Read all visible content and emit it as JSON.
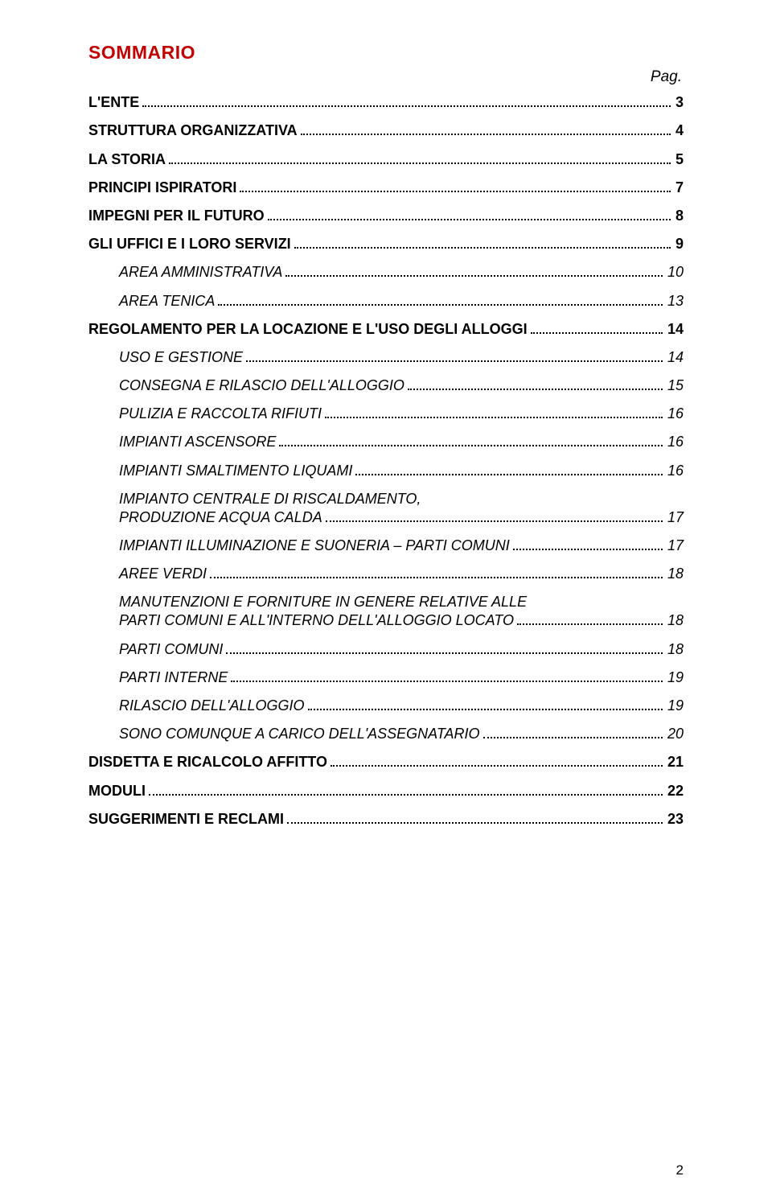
{
  "title": "SOMMARIO",
  "pag_label": "Pag.",
  "toc": [
    {
      "label": "L'ENTE",
      "page": "3",
      "bold": true,
      "italic": false,
      "indent": 0
    },
    {
      "label": "STRUTTURA ORGANIZZATIVA",
      "page": "4",
      "bold": true,
      "italic": false,
      "indent": 0
    },
    {
      "label": "LA STORIA",
      "page": "5",
      "bold": true,
      "italic": false,
      "indent": 0
    },
    {
      "label": "PRINCIPI ISPIRATORI",
      "page": "7",
      "bold": true,
      "italic": false,
      "indent": 0
    },
    {
      "label": "IMPEGNI PER IL FUTURO",
      "page": "8",
      "bold": true,
      "italic": false,
      "indent": 0
    },
    {
      "label": "GLI UFFICI E I LORO SERVIZI",
      "page": "9",
      "bold": true,
      "italic": false,
      "indent": 0
    },
    {
      "label": "AREA AMMINISTRATIVA",
      "page": "10",
      "bold": false,
      "italic": true,
      "indent": 1
    },
    {
      "label": "AREA TENICA",
      "page": "13",
      "bold": false,
      "italic": true,
      "indent": 1
    },
    {
      "label": "REGOLAMENTO PER LA LOCAZIONE E L'USO DEGLI ALLOGGI",
      "page": "14",
      "bold": true,
      "italic": false,
      "indent": 0
    },
    {
      "label": "USO E GESTIONE",
      "page": "14",
      "bold": false,
      "italic": true,
      "indent": 1
    },
    {
      "label": "CONSEGNA E RILASCIO DELL'ALLOGGIO",
      "page": "15",
      "bold": false,
      "italic": true,
      "indent": 1
    },
    {
      "label": "PULIZIA E RACCOLTA RIFIUTI",
      "page": "16",
      "bold": false,
      "italic": true,
      "indent": 1
    },
    {
      "label": "IMPIANTI ASCENSORE",
      "page": "16",
      "bold": false,
      "italic": true,
      "indent": 1
    },
    {
      "label": "IMPIANTI SMALTIMENTO LIQUAMI",
      "page": "16",
      "bold": false,
      "italic": true,
      "indent": 1
    },
    {
      "label_line1": "IMPIANTO CENTRALE DI RISCALDAMENTO,",
      "label": "PRODUZIONE ACQUA CALDA",
      "page": "17",
      "bold": false,
      "italic": true,
      "indent": 1,
      "multiline": true
    },
    {
      "label": "IMPIANTI ILLUMINAZIONE E SUONERIA – PARTI COMUNI",
      "page": "17",
      "bold": false,
      "italic": true,
      "indent": 1
    },
    {
      "label": "AREE VERDI",
      "page": "18",
      "bold": false,
      "italic": true,
      "indent": 1
    },
    {
      "label_line1": "MANUTENZIONI E FORNITURE IN GENERE RELATIVE ALLE",
      "label": "PARTI COMUNI E ALL'INTERNO DELL'ALLOGGIO LOCATO",
      "page": "18",
      "bold": false,
      "italic": true,
      "indent": 1,
      "multiline": true
    },
    {
      "label": "PARTI COMUNI",
      "page": "18",
      "bold": false,
      "italic": true,
      "indent": 1
    },
    {
      "label": "PARTI INTERNE",
      "page": "19",
      "bold": false,
      "italic": true,
      "indent": 1
    },
    {
      "label": "RILASCIO DELL'ALLOGGIO",
      "page": "19",
      "bold": false,
      "italic": true,
      "indent": 1
    },
    {
      "label": "SONO COMUNQUE A CARICO DELL'ASSEGNATARIO",
      "page": "20",
      "bold": false,
      "italic": true,
      "indent": 1
    },
    {
      "label": "DISDETTA E RICALCOLO AFFITTO",
      "page": "21",
      "bold": true,
      "italic": false,
      "indent": 0
    },
    {
      "label": "MODULI",
      "page": "22",
      "bold": true,
      "italic": false,
      "indent": 0
    },
    {
      "label": "SUGGERIMENTI E RECLAMI",
      "page": "23",
      "bold": true,
      "italic": false,
      "indent": 0
    }
  ],
  "footer_page": "2",
  "colors": {
    "title": "#c00000",
    "text": "#000000",
    "background": "#ffffff"
  }
}
